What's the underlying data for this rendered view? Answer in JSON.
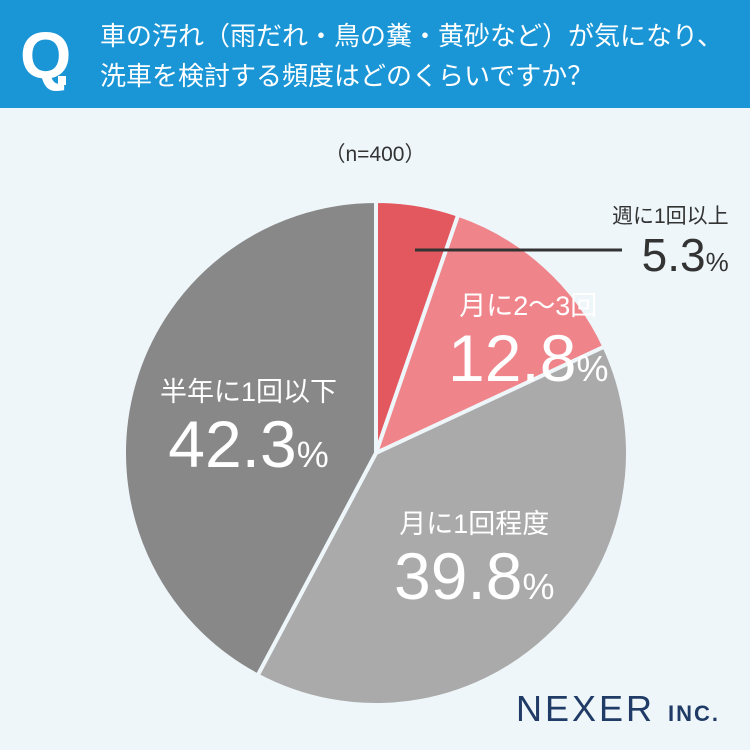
{
  "header": {
    "q_mark": "Q",
    "line1": "車の汚れ（雨だれ・鳥の糞・黄砂など）が気になり、",
    "line2": "洗車を検討する頻度はどのくらいですか？"
  },
  "sample": "（n=400）",
  "chart_data": {
    "type": "pie",
    "title": "車の汚れ（雨だれ・鳥の糞・黄砂など）が気になり、洗車を検討する頻度はどのくらいですか？",
    "n": 400,
    "categories": [
      "週に1回以上",
      "月に2〜3回",
      "月に1回程度",
      "半年に1回以下"
    ],
    "values": [
      5.3,
      12.8,
      39.8,
      42.3
    ],
    "value_labels": [
      "5.3",
      "12.8",
      "39.8",
      "42.3"
    ],
    "unit": "%",
    "colors": [
      "#e3585f",
      "#ef858a",
      "#aaaaaa",
      "#888888"
    ],
    "start": "12 o'clock, clockwise"
  },
  "logo": {
    "name": "NEXER",
    "suffix": "INC."
  }
}
